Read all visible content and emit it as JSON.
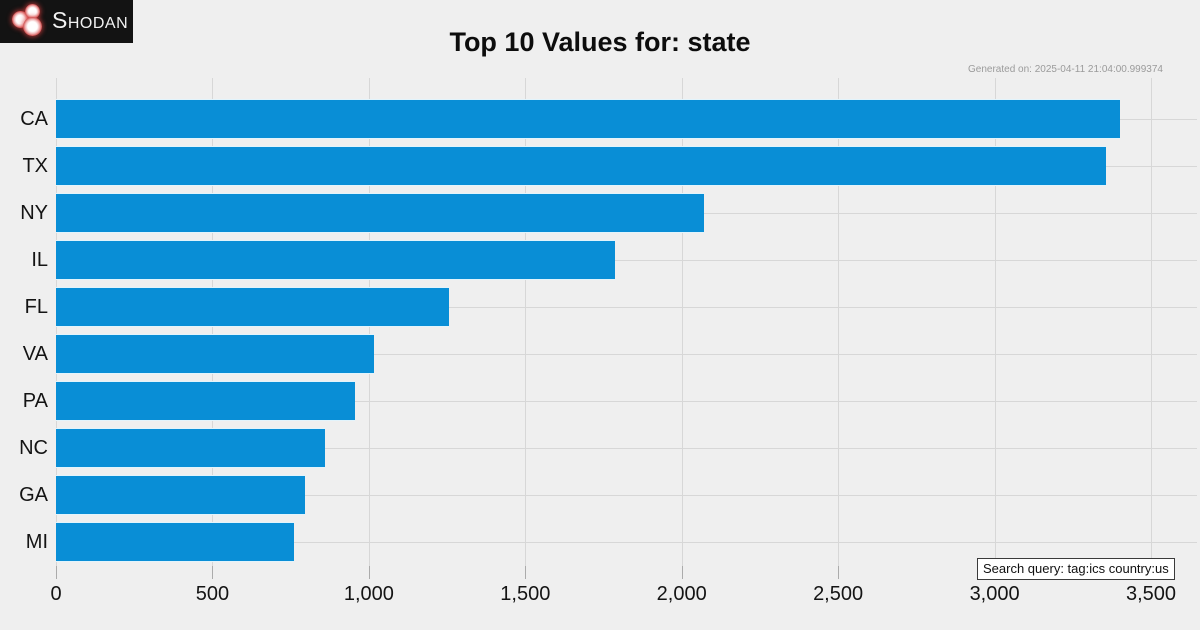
{
  "header": {
    "logo_text": "Shodan",
    "generated_on": "Generated on: 2025-04-11 21:04:00.999374"
  },
  "footer": {
    "search_query": "Search query: tag:ics country:us"
  },
  "chart_data": {
    "type": "bar",
    "orientation": "horizontal",
    "title": "Top 10 Values for: state",
    "categories": [
      "CA",
      "TX",
      "NY",
      "IL",
      "FL",
      "VA",
      "PA",
      "NC",
      "GA",
      "MI"
    ],
    "values": [
      3400,
      3355,
      2070,
      1785,
      1255,
      1015,
      955,
      860,
      795,
      760
    ],
    "xlabel": "",
    "ylabel": "",
    "xlim": [
      0,
      3647
    ],
    "xticks": [
      0,
      500,
      1000,
      1500,
      2000,
      2500,
      3000,
      3500
    ],
    "xtick_labels": [
      "0",
      "500",
      "1,000",
      "1,500",
      "2,000",
      "2,500",
      "3,000",
      "3,500"
    ],
    "grid": true,
    "legend": false,
    "bar_color": "#098ed6",
    "grid_color": "#d7d7d7",
    "background_color": "#efefef"
  }
}
